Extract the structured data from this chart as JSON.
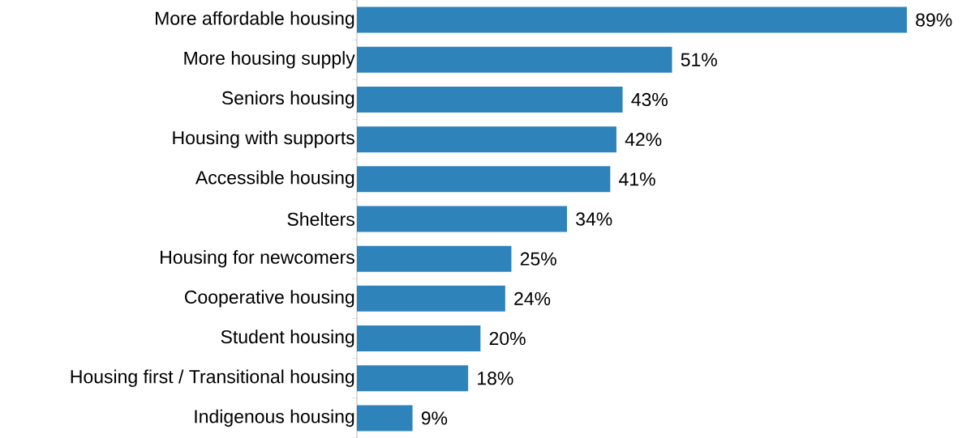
{
  "chart_data": {
    "type": "bar",
    "orientation": "horizontal",
    "categories": [
      "More affordable housing",
      "More housing supply",
      "Seniors housing",
      "Housing with supports",
      "Accessible housing",
      "Shelters",
      "Housing for newcomers",
      "Cooperative housing",
      "Student housing",
      "Housing first / Transitional housing",
      "Indigenous housing"
    ],
    "values": [
      89,
      51,
      43,
      42,
      41,
      34,
      25,
      24,
      20,
      18,
      9
    ],
    "value_labels": [
      "89%",
      "51%",
      "43%",
      "42%",
      "41%",
      "34%",
      "25%",
      "24%",
      "20%",
      "18%",
      "9%"
    ],
    "color": "#2e83bb",
    "xlim": [
      0,
      89
    ],
    "tick_labels": "y"
  }
}
